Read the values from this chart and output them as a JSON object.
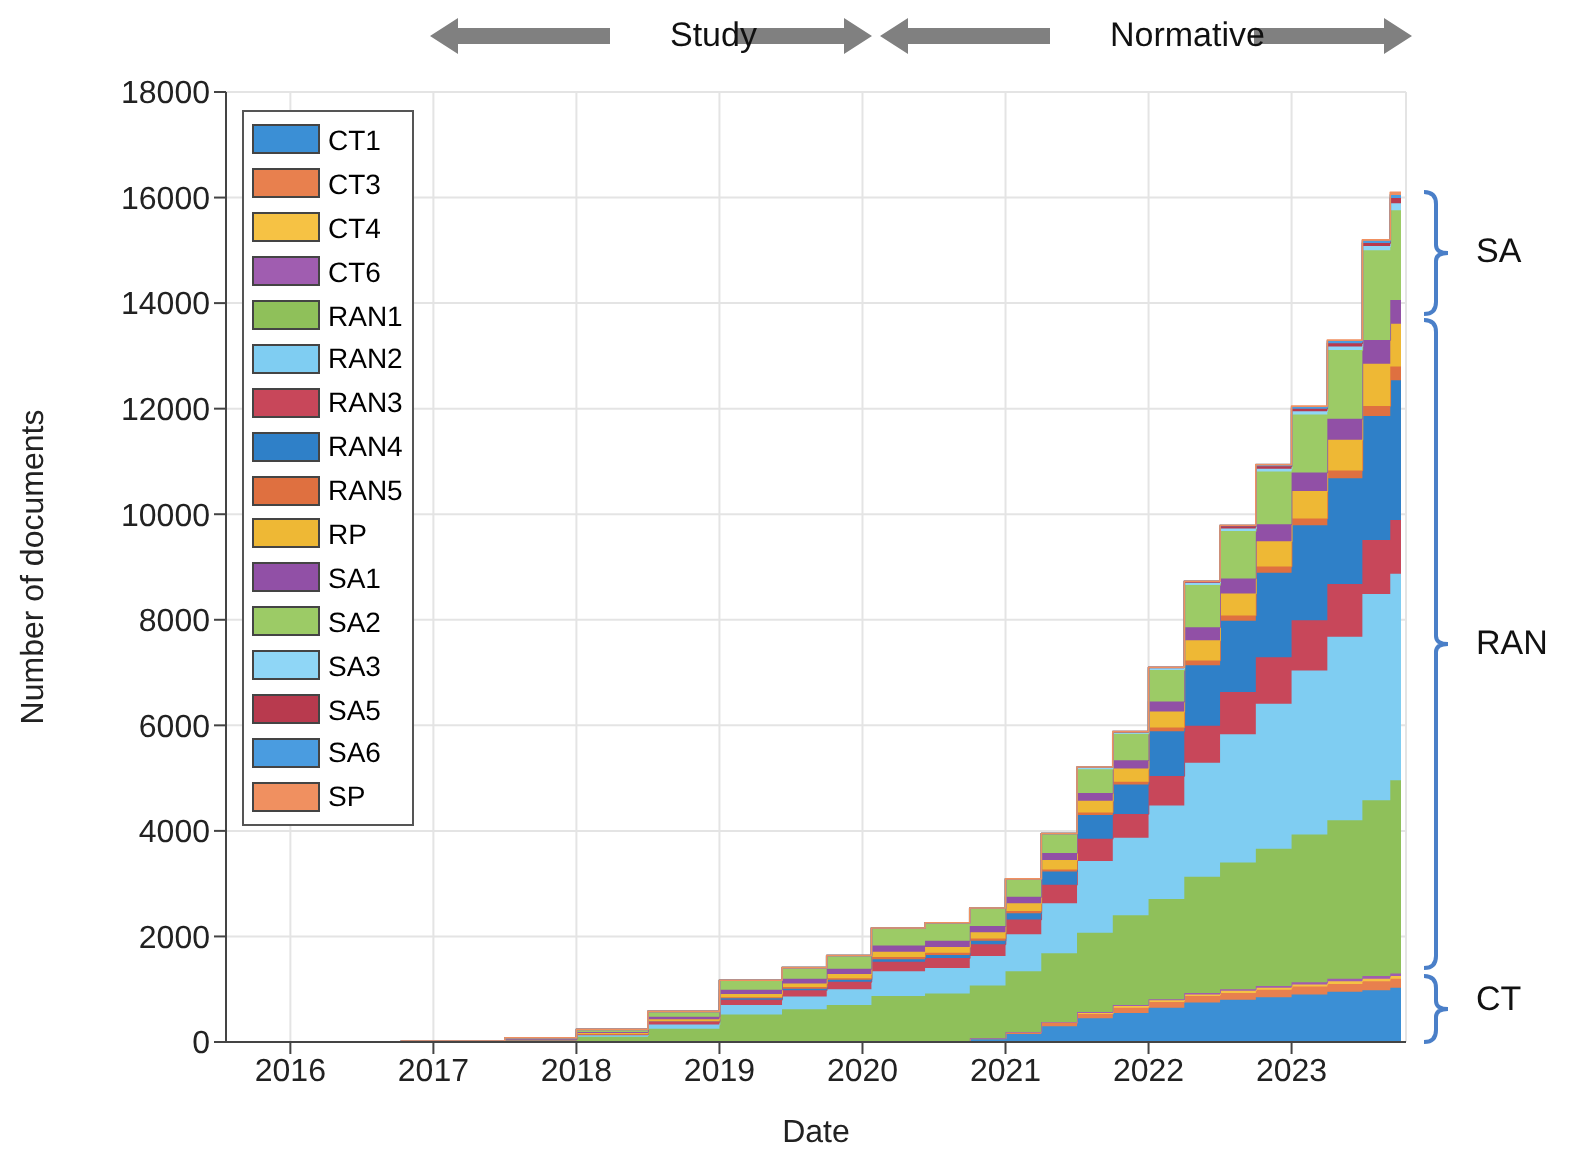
{
  "chart_data": {
    "type": "area",
    "stacked": true,
    "xlabel": "Date",
    "ylabel": "Number of documents",
    "x": [
      2016.3,
      2017.25,
      2017.75,
      2018.25,
      2018.75,
      2019.25,
      2019.625,
      2019.875,
      2020.25,
      2020.625,
      2020.875,
      2021.125,
      2021.375,
      2021.625,
      2021.875,
      2022.125,
      2022.375,
      2022.625,
      2022.875,
      2023.125,
      2023.375,
      2023.615,
      2023.765
    ],
    "xlim": [
      2015.55,
      2023.8
    ],
    "xticks": [
      2016,
      2017,
      2018,
      2019,
      2020,
      2021,
      2022,
      2023
    ],
    "ylim": [
      0,
      18000
    ],
    "yticks": [
      0,
      2000,
      4000,
      6000,
      8000,
      10000,
      12000,
      14000,
      16000,
      18000
    ],
    "grid": true,
    "legend": "top left",
    "annotations": [
      "Study",
      "Normative",
      "SA",
      "RAN",
      "CT"
    ],
    "series": [
      {
        "name": "CT1",
        "color": "#3b8fd5",
        "values": [
          0,
          0,
          0,
          0,
          0,
          0,
          0,
          0,
          0,
          20,
          50,
          150,
          300,
          450,
          550,
          650,
          750,
          800,
          850,
          900,
          950,
          980,
          1030
        ]
      },
      {
        "name": "CT3",
        "color": "#e8804e",
        "values": [
          0,
          0,
          0,
          0,
          0,
          0,
          0,
          0,
          0,
          0,
          20,
          40,
          60,
          80,
          100,
          110,
          120,
          130,
          140,
          150,
          150,
          170,
          170
        ]
      },
      {
        "name": "CT4",
        "color": "#f6c244",
        "values": [
          0,
          0,
          0,
          0,
          0,
          0,
          0,
          0,
          0,
          0,
          0,
          0,
          20,
          20,
          30,
          30,
          30,
          40,
          40,
          40,
          50,
          50,
          50
        ]
      },
      {
        "name": "CT6",
        "color": "#a05db0",
        "values": [
          0,
          0,
          0,
          0,
          0,
          0,
          0,
          0,
          0,
          0,
          0,
          0,
          0,
          20,
          20,
          20,
          30,
          30,
          30,
          40,
          50,
          50,
          50
        ]
      },
      {
        "name": "RAN1",
        "color": "#8fc05a",
        "values": [
          0,
          0,
          50,
          100,
          250,
          520,
          620,
          700,
          870,
          900,
          1000,
          1150,
          1300,
          1500,
          1700,
          1900,
          2200,
          2400,
          2600,
          2800,
          3000,
          3330,
          3660
        ]
      },
      {
        "name": "RAN2",
        "color": "#7fcdf2",
        "values": [
          0,
          0,
          0,
          30,
          80,
          180,
          240,
          300,
          470,
          480,
          560,
          700,
          950,
          1360,
          1470,
          1770,
          2160,
          2430,
          2750,
          3110,
          3480,
          3910,
          3910
        ]
      },
      {
        "name": "RAN3",
        "color": "#c8475a",
        "values": [
          0,
          0,
          0,
          20,
          50,
          100,
          120,
          140,
          180,
          190,
          220,
          280,
          350,
          420,
          450,
          560,
          700,
          800,
          880,
          950,
          1000,
          1020,
          1020
        ]
      },
      {
        "name": "RAN4",
        "color": "#2f80c8",
        "values": [
          0,
          0,
          0,
          0,
          20,
          30,
          30,
          40,
          50,
          60,
          70,
          120,
          250,
          450,
          560,
          850,
          1150,
          1350,
          1600,
          1800,
          2000,
          2350,
          2650
        ]
      },
      {
        "name": "RAN5",
        "color": "#df7040",
        "values": [
          0,
          0,
          0,
          0,
          0,
          20,
          30,
          30,
          40,
          40,
          40,
          40,
          40,
          50,
          50,
          70,
          90,
          100,
          120,
          130,
          150,
          190,
          260
        ]
      },
      {
        "name": "RP",
        "color": "#eeb835",
        "values": [
          0,
          0,
          0,
          20,
          30,
          60,
          70,
          80,
          100,
          110,
          120,
          150,
          180,
          220,
          250,
          300,
          380,
          420,
          480,
          520,
          580,
          800,
          810
        ]
      },
      {
        "name": "SA1",
        "color": "#9150a6",
        "values": [
          0,
          0,
          0,
          20,
          50,
          80,
          90,
          100,
          120,
          120,
          120,
          120,
          130,
          150,
          160,
          190,
          250,
          280,
          320,
          350,
          400,
          450,
          450
        ]
      },
      {
        "name": "SA2",
        "color": "#9ccb66",
        "values": [
          0,
          20,
          30,
          50,
          100,
          180,
          210,
          250,
          330,
          340,
          340,
          340,
          370,
          450,
          500,
          600,
          800,
          900,
          1000,
          1100,
          1300,
          1700,
          1700
        ]
      },
      {
        "name": "SA3",
        "color": "#8fd6f6",
        "values": [
          0,
          0,
          0,
          0,
          0,
          0,
          0,
          0,
          0,
          0,
          0,
          0,
          0,
          20,
          20,
          30,
          40,
          50,
          50,
          60,
          70,
          80,
          130
        ]
      },
      {
        "name": "SA5",
        "color": "#b83a4e",
        "values": [
          0,
          0,
          0,
          0,
          0,
          0,
          0,
          0,
          0,
          0,
          0,
          0,
          0,
          20,
          20,
          20,
          30,
          40,
          50,
          50,
          60,
          60,
          100
        ]
      },
      {
        "name": "SA6",
        "color": "#4a9ce0",
        "values": [
          0,
          0,
          0,
          0,
          0,
          0,
          0,
          0,
          0,
          0,
          0,
          0,
          0,
          0,
          0,
          0,
          0,
          20,
          30,
          30,
          40,
          40,
          60
        ]
      },
      {
        "name": "SP",
        "color": "#f09060",
        "values": [
          0,
          0,
          0,
          0,
          0,
          0,
          0,
          0,
          0,
          0,
          0,
          0,
          0,
          0,
          0,
          0,
          0,
          0,
          0,
          20,
          20,
          20,
          50
        ]
      }
    ]
  }
}
